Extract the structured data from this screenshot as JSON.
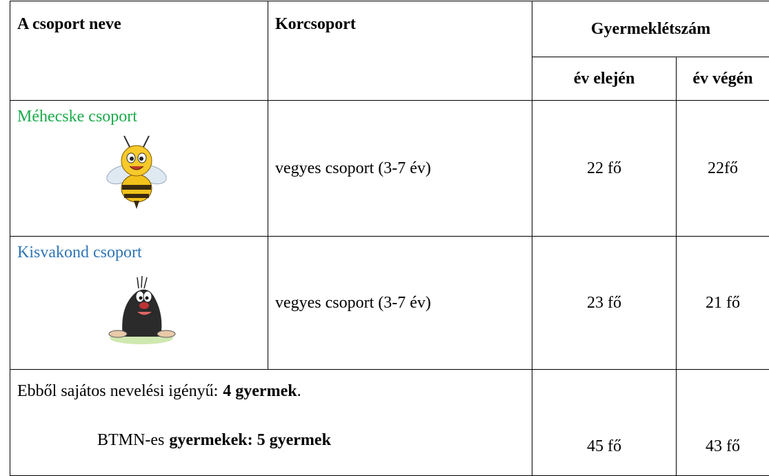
{
  "table": {
    "header": {
      "name": "A csoport neve",
      "age": "Korcsoport",
      "count": "Gyermeklétszám",
      "start": "év elején",
      "end": "év végén"
    },
    "rows": [
      {
        "name": "Méhecske csoport",
        "color": "#1aab4a",
        "age": "vegyes csoport (3-7 év)",
        "start": "22 fő",
        "end": "22fő"
      },
      {
        "name": "Kisvakond csoport",
        "color": "#2e75b6",
        "age": "vegyes csoport (3-7 év)",
        "start": "23 fő",
        "end": "21 fő"
      }
    ],
    "footer": {
      "note1": {
        "plain": "Ebből sajátos nevelési igényű:",
        "bold": "4 gyermek",
        "end": "."
      },
      "note2": {
        "plain": "BTMN-es",
        "bold": "gyermekek: 5 gyermek"
      },
      "start": "45 fő",
      "end": "43 fő"
    }
  }
}
